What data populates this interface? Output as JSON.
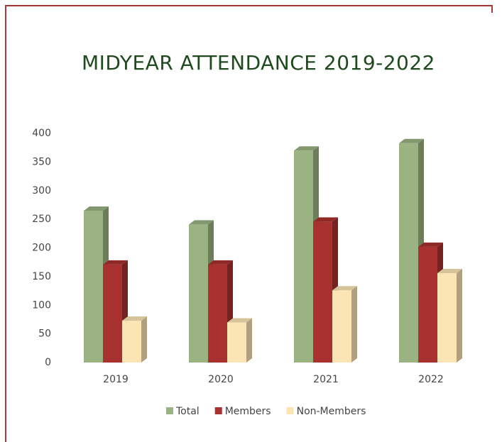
{
  "chart_data": {
    "type": "bar3d",
    "title": "MIDYEAR ATTENDANCE 2019-2022",
    "categories": [
      "2019",
      "2020",
      "2021",
      "2022"
    ],
    "series": [
      {
        "name": "Total",
        "color": "#9bb383",
        "values": [
          265,
          241,
          370,
          383
        ]
      },
      {
        "name": "Members",
        "color": "#a8302f",
        "values": [
          171,
          171,
          246,
          202
        ]
      },
      {
        "name": "Non-Members",
        "color": "#fbe5b5",
        "values": [
          73,
          70,
          126,
          156
        ]
      }
    ],
    "ylim": [
      0,
      400
    ],
    "yticks": [
      0,
      50,
      100,
      150,
      200,
      250,
      300,
      350,
      400
    ],
    "grid": false,
    "legend": "bottom"
  }
}
